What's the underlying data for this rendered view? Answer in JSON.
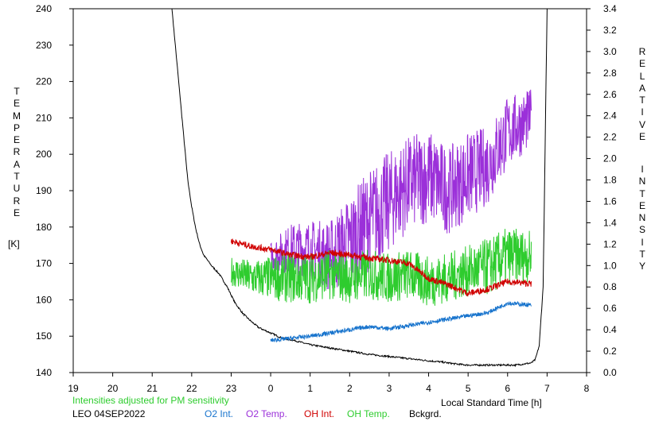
{
  "chart_data": {
    "type": "line",
    "left_axis_label_chars": "TEMPERATURE",
    "left_axis_unit": "[K]",
    "right_axis_label_word1": "RELATIVE",
    "right_axis_label_word2": "INTENSITY",
    "xlabel": "Local Standard Time [h]",
    "note": "Intensities adjusted for PM sensitivity",
    "station": "LEO 04SEP2022",
    "x_ticks": [
      "19",
      "20",
      "21",
      "22",
      "23",
      "0",
      "1",
      "2",
      "3",
      "4",
      "5",
      "6",
      "7",
      "8"
    ],
    "x_range": [
      19,
      32
    ],
    "y_left_range": [
      140,
      240
    ],
    "y_left_ticks": [
      "140",
      "150",
      "160",
      "170",
      "180",
      "190",
      "200",
      "210",
      "220",
      "230",
      "240"
    ],
    "y_right_range": [
      0.0,
      3.4
    ],
    "y_right_ticks": [
      "0.0",
      "0.2",
      "0.4",
      "0.6",
      "0.8",
      "1.0",
      "1.2",
      "1.4",
      "1.6",
      "1.8",
      "2.0",
      "2.2",
      "2.4",
      "2.6",
      "2.8",
      "3.0",
      "3.2",
      "3.4"
    ],
    "legend": [
      {
        "name": "O2 Int.",
        "color": "#1874cd"
      },
      {
        "name": "O2 Temp.",
        "color": "#9b30d9"
      },
      {
        "name": "OH Int.",
        "color": "#d00000"
      },
      {
        "name": "OH Temp.",
        "color": "#2ecc2e"
      },
      {
        "name": "Bckgrd.",
        "color": "#000000"
      }
    ],
    "series": [
      {
        "name": "Bckgrd.",
        "axis": "right",
        "color": "#000000",
        "x": [
          21.5,
          21.6,
          21.7,
          21.8,
          21.9,
          22.0,
          22.1,
          22.2,
          22.3,
          22.5,
          22.7,
          22.9,
          23.1,
          23.3,
          23.5,
          23.7,
          24.0,
          24.3,
          24.6,
          25.0,
          25.5,
          26.0,
          26.5,
          27.0,
          27.5,
          28.0,
          28.3,
          28.5,
          28.7,
          29.0,
          29.4,
          29.8,
          30.2,
          30.4,
          30.6,
          30.7,
          30.8,
          30.9,
          31.0
        ],
        "y": [
          3.4,
          3.0,
          2.6,
          2.2,
          1.8,
          1.55,
          1.35,
          1.2,
          1.1,
          1.0,
          0.92,
          0.8,
          0.65,
          0.55,
          0.48,
          0.42,
          0.37,
          0.32,
          0.3,
          0.26,
          0.23,
          0.2,
          0.17,
          0.15,
          0.13,
          0.11,
          0.1,
          0.09,
          0.08,
          0.07,
          0.07,
          0.07,
          0.07,
          0.08,
          0.09,
          0.12,
          0.25,
          0.8,
          3.4
        ]
      },
      {
        "name": "O2 Temp.",
        "axis": "left",
        "color": "#9b30d9",
        "x": [
          24.0,
          24.5,
          25.0,
          25.5,
          26.0,
          26.5,
          27.0,
          27.5,
          28.0,
          28.5,
          29.0,
          29.5,
          30.0,
          30.6
        ],
        "y": [
          172,
          174,
          174,
          172,
          176,
          182,
          187,
          192,
          194,
          190,
          194,
          197,
          206,
          210
        ],
        "noise": [
          4,
          7,
          8,
          10,
          13,
          14,
          14,
          13,
          13,
          12,
          12,
          11,
          10,
          8
        ]
      },
      {
        "name": "OH Temp.",
        "axis": "left",
        "color": "#2ecc2e",
        "x": [
          23.0,
          23.5,
          24.0,
          24.5,
          25.0,
          25.5,
          26.0,
          26.5,
          27.0,
          27.5,
          28.0,
          28.5,
          29.0,
          29.5,
          30.0,
          30.6
        ],
        "y": [
          168,
          166,
          166,
          166,
          166,
          167,
          166,
          167,
          166,
          167,
          165,
          166,
          168,
          169,
          172,
          172
        ],
        "noise": [
          4,
          5,
          6,
          7,
          7,
          7,
          7,
          7,
          7,
          7,
          7,
          7,
          7,
          8,
          8,
          7
        ]
      },
      {
        "name": "OH Int.",
        "axis": "right",
        "color": "#d00000",
        "x": [
          23.0,
          23.5,
          24.0,
          24.5,
          25.0,
          25.5,
          26.0,
          26.5,
          27.0,
          27.5,
          28.0,
          28.5,
          29.0,
          29.5,
          30.0,
          30.6
        ],
        "y": [
          1.23,
          1.18,
          1.15,
          1.1,
          1.08,
          1.12,
          1.1,
          1.07,
          1.05,
          1.02,
          0.88,
          0.82,
          0.74,
          0.78,
          0.85,
          0.83
        ],
        "noise": [
          0.03,
          0.03,
          0.03,
          0.03,
          0.03,
          0.03,
          0.03,
          0.03,
          0.03,
          0.03,
          0.03,
          0.03,
          0.03,
          0.03,
          0.03,
          0.03
        ]
      },
      {
        "name": "O2 Int.",
        "axis": "right",
        "color": "#1874cd",
        "x": [
          24.0,
          24.5,
          25.0,
          25.5,
          26.0,
          26.5,
          27.0,
          27.5,
          28.0,
          28.5,
          29.0,
          29.5,
          30.0,
          30.6
        ],
        "y": [
          0.3,
          0.32,
          0.34,
          0.37,
          0.4,
          0.43,
          0.41,
          0.44,
          0.47,
          0.5,
          0.53,
          0.56,
          0.65,
          0.63
        ],
        "noise": [
          0.02,
          0.02,
          0.02,
          0.02,
          0.02,
          0.02,
          0.02,
          0.02,
          0.02,
          0.02,
          0.02,
          0.02,
          0.02,
          0.02
        ]
      }
    ],
    "grid": false
  }
}
